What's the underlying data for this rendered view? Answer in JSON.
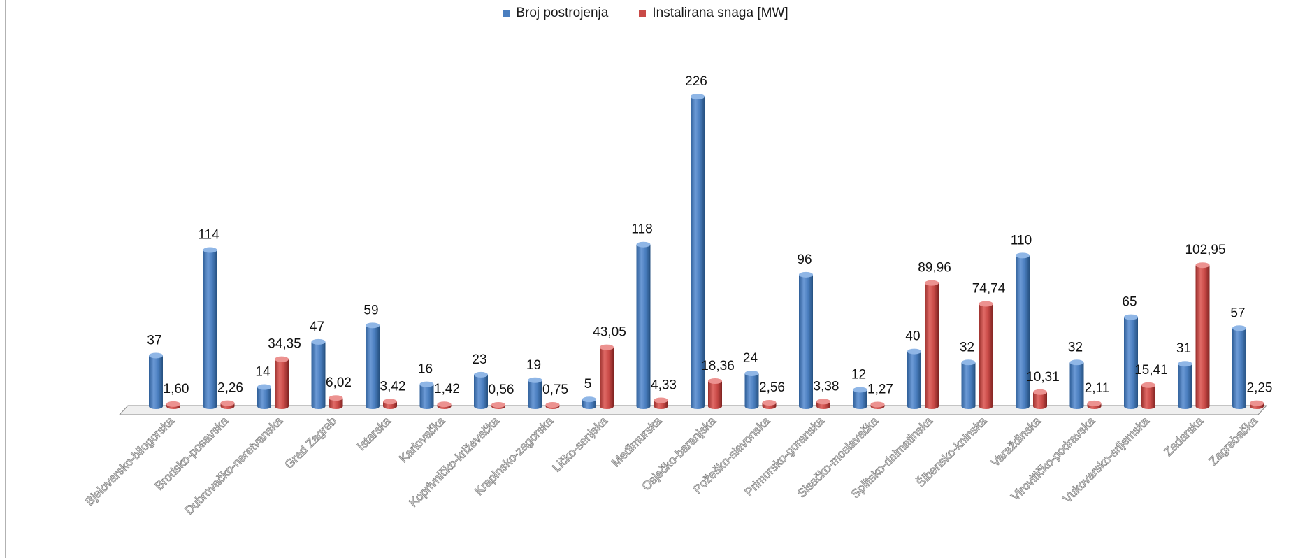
{
  "chart_data": {
    "type": "bar",
    "title": "",
    "xlabel": "",
    "ylabel": "",
    "ylim": [
      0,
      226
    ],
    "grid": false,
    "legend_position": "top-center",
    "categories": [
      "Bjelovarsko-bilogorska",
      "Brodsko-posavska",
      "Dubrovačko-neretvanska",
      "Grad Zagreb",
      "Istarska",
      "Karlovačka",
      "Koprivničko-križevačka",
      "Krapinsko-zagorska",
      "Ličko-senjska",
      "Međimurska",
      "Osječko-baranjska",
      "Požeško-slavonska",
      "Primorsko-goranska",
      "Sisačko-moslavačka",
      "Splitsko-dalmatinska",
      "Šibensko-kninska",
      "Varaždinska",
      "Virovitičko-podravska",
      "Vukovarsko-srijemska",
      "Zadarska",
      "Zagrebačka"
    ],
    "series": [
      {
        "name": "Broj postrojenja",
        "color": "#4a7ebf",
        "values": [
          37,
          114,
          14,
          47,
          59,
          16,
          23,
          19,
          5,
          118,
          226,
          24,
          96,
          12,
          40,
          32,
          110,
          32,
          65,
          31,
          57
        ],
        "labels": [
          "37",
          "114",
          "14",
          "47",
          "59",
          "16",
          "23",
          "19",
          "5",
          "118",
          "226",
          "24",
          "96",
          "12",
          "40",
          "32",
          "110",
          "32",
          "65",
          "31",
          "57"
        ]
      },
      {
        "name": "Instalirana snaga [MW]",
        "color": "#c94a47",
        "values": [
          1.6,
          2.26,
          34.35,
          6.02,
          3.42,
          1.42,
          0.56,
          0.75,
          43.05,
          4.33,
          18.36,
          2.56,
          3.38,
          1.27,
          89.96,
          74.74,
          10.31,
          2.11,
          15.41,
          102.95,
          2.25
        ],
        "labels": [
          "1,60",
          "2,26",
          "34,35",
          "6,02",
          "3,42",
          "1,42",
          "0,56",
          "0,75",
          "43,05",
          "4,33",
          "18,36",
          "2,56",
          "3,38",
          "1,27",
          "89,96",
          "74,74",
          "10,31",
          "2,11",
          "15,41",
          "102,95",
          "2,25"
        ]
      }
    ]
  }
}
